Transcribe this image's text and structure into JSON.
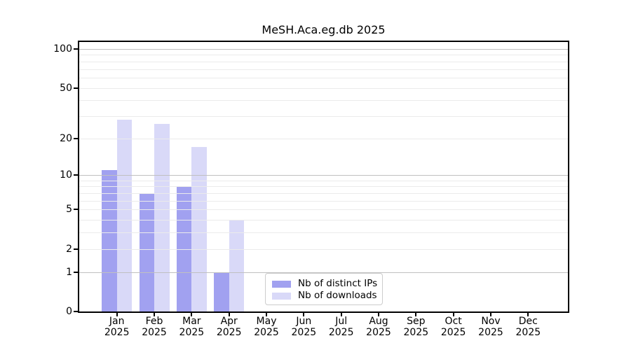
{
  "chart_data": {
    "type": "bar",
    "title": "MeSH.Aca.eg.db 2025",
    "xlabel": "",
    "ylabel": "",
    "year": "2025",
    "categories": [
      "Jan",
      "Feb",
      "Mar",
      "Apr",
      "May",
      "Jun",
      "Jul",
      "Aug",
      "Sep",
      "Oct",
      "Nov",
      "Dec"
    ],
    "series": [
      {
        "key": "distinct-ips",
        "name": "Nb of distinct IPs",
        "color": "#a1a1f0",
        "values": [
          11,
          7,
          8,
          1,
          0,
          0,
          0,
          0,
          0,
          0,
          0,
          0
        ]
      },
      {
        "key": "downloads",
        "name": "Nb of downloads",
        "color": "#d9d9f8",
        "values": [
          28,
          26,
          17,
          4,
          0,
          0,
          0,
          0,
          0,
          0,
          0,
          0
        ]
      }
    ],
    "y_scale": "log10(1+value)",
    "ylim": [
      0,
      112
    ],
    "y_ticks": [
      0,
      1,
      2,
      5,
      10,
      20,
      50,
      100
    ],
    "y_gridlines": {
      "major": [
        1,
        10,
        100
      ],
      "minor": [
        2,
        3,
        4,
        5,
        6,
        7,
        8,
        9,
        20,
        30,
        40,
        50,
        60,
        70,
        80,
        90
      ]
    },
    "grid": true,
    "legend_position": "lower center"
  },
  "colors": {
    "major_grid": "#c0c0c0",
    "minor_grid": "#ebebeb",
    "axis": "#000000",
    "legend_border": "#cccccc"
  }
}
